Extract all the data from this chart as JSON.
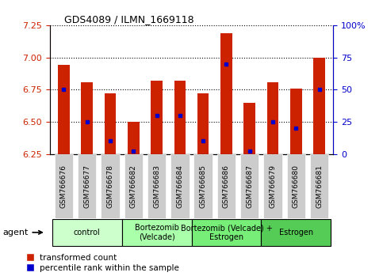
{
  "title": "GDS4089 / ILMN_1669118",
  "samples": [
    "GSM766676",
    "GSM766677",
    "GSM766678",
    "GSM766682",
    "GSM766683",
    "GSM766684",
    "GSM766685",
    "GSM766686",
    "GSM766687",
    "GSM766679",
    "GSM766680",
    "GSM766681"
  ],
  "red_values": [
    6.94,
    6.81,
    6.72,
    6.5,
    6.82,
    6.82,
    6.72,
    7.19,
    6.65,
    6.81,
    6.76,
    7.0
  ],
  "blue_values": [
    50,
    25,
    10,
    2,
    30,
    30,
    10,
    70,
    2,
    25,
    20,
    50
  ],
  "y_min": 6.25,
  "y_max": 7.25,
  "y_ticks_red": [
    6.25,
    6.5,
    6.75,
    7.0,
    7.25
  ],
  "y_ticks_blue": [
    0,
    25,
    50,
    75,
    100
  ],
  "groups": [
    {
      "label": "control",
      "start": 0,
      "end": 3,
      "color": "#ccffcc"
    },
    {
      "label": "Bortezomib\n(Velcade)",
      "start": 3,
      "end": 6,
      "color": "#aaffaa"
    },
    {
      "label": "Bortezomib (Velcade) +\nEstrogen",
      "start": 6,
      "end": 9,
      "color": "#77ee77"
    },
    {
      "label": "Estrogen",
      "start": 9,
      "end": 12,
      "color": "#55cc55"
    }
  ],
  "bar_color": "#cc2200",
  "marker_color": "#0000cc",
  "base_value": 6.25,
  "title_color": "#000000",
  "left_axis_color": "#cc2200",
  "right_axis_color": "#0000cc",
  "legend_red_label": "transformed count",
  "legend_blue_label": "percentile rank within the sample",
  "agent_label": "agent",
  "group_colors": [
    "#ccffcc",
    "#aaffaa",
    "#77ee77",
    "#55cc55"
  ],
  "tick_bg_color": "#cccccc",
  "bar_width": 0.5
}
